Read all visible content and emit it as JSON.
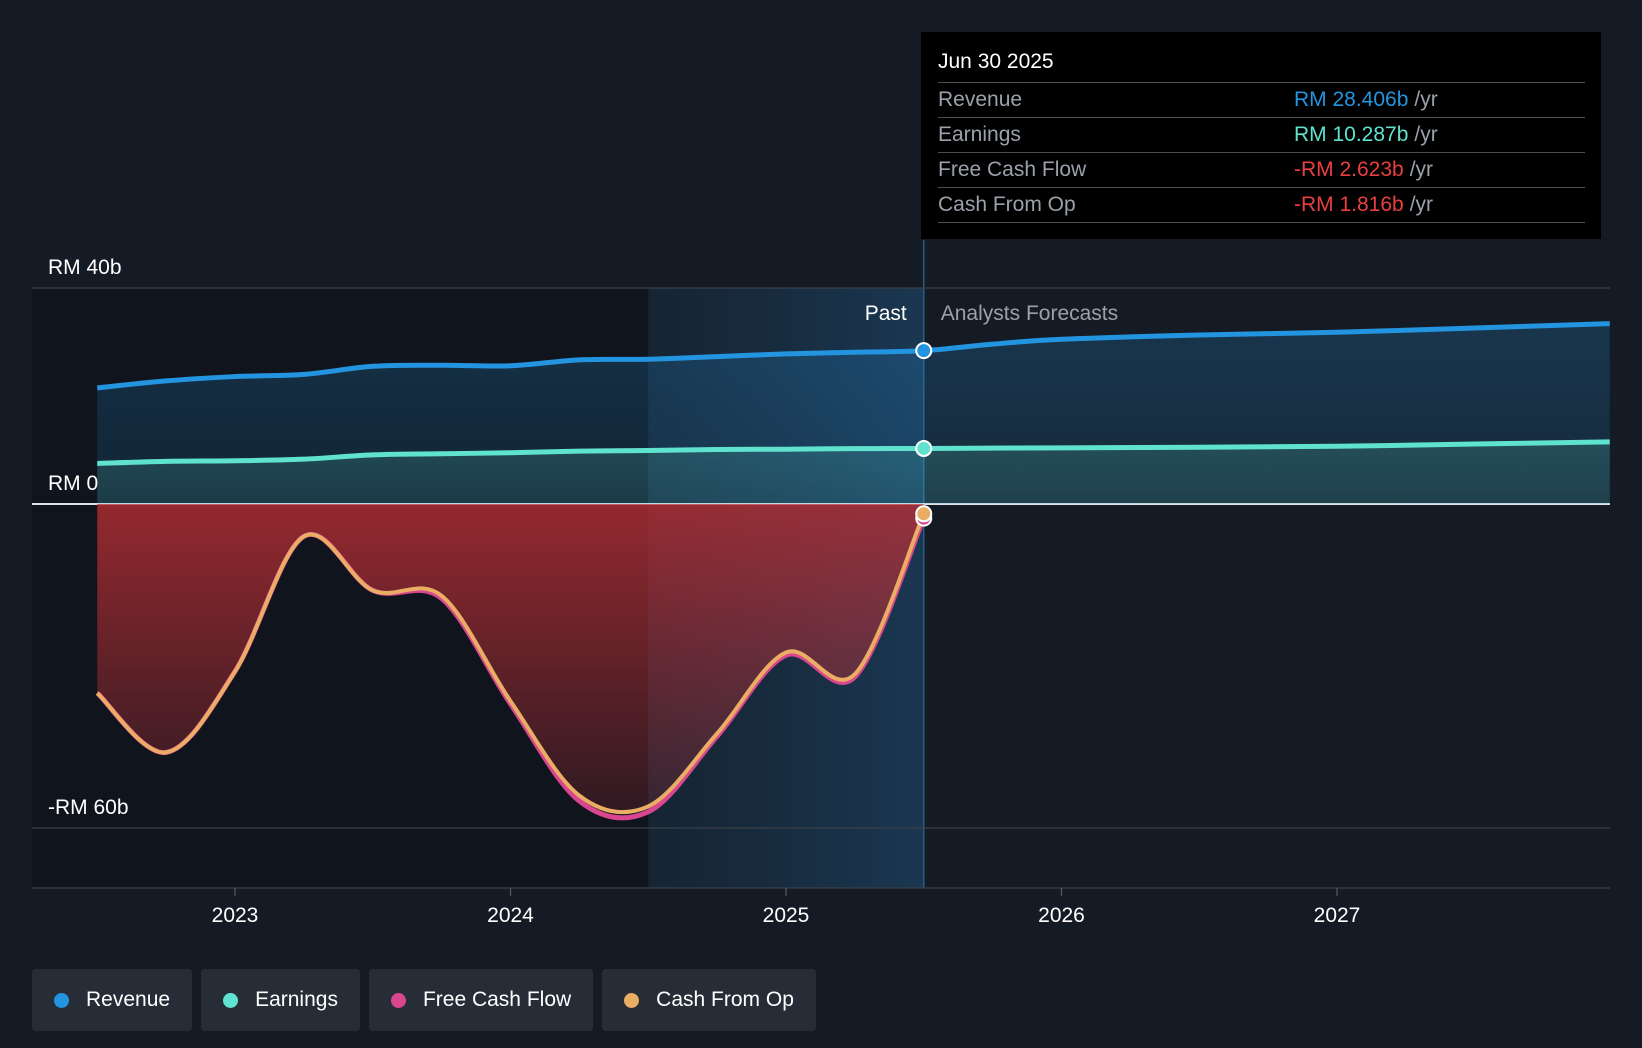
{
  "chart_data": {
    "type": "area",
    "ylim": [
      -60,
      40
    ],
    "y_tick_labels": [
      "RM 40b",
      "RM 0",
      "-RM 60b"
    ],
    "y_ticks": [
      40,
      0,
      -60
    ],
    "x_tick_labels": [
      "2023",
      "2024",
      "2025",
      "2026",
      "2027"
    ],
    "x_ticks": [
      2023,
      2024,
      2025,
      2026,
      2027
    ],
    "xlim": [
      2022.27,
      2027.99
    ],
    "past_label": "Past",
    "forecast_label": "Analysts Forecasts",
    "past_end_x": 2025.5,
    "highlight_start_x": 2024.5,
    "grid": true,
    "legend_position": "bottom-left",
    "series": [
      {
        "name": "Revenue",
        "color": "#2394df",
        "points": [
          [
            2022.5,
            21.5
          ],
          [
            2022.75,
            22.8
          ],
          [
            2023.0,
            23.6
          ],
          [
            2023.25,
            24.0
          ],
          [
            2023.5,
            25.5
          ],
          [
            2023.75,
            25.7
          ],
          [
            2024.0,
            25.6
          ],
          [
            2024.25,
            26.7
          ],
          [
            2024.5,
            26.8
          ],
          [
            2024.75,
            27.3
          ],
          [
            2025.0,
            27.8
          ],
          [
            2025.25,
            28.1
          ],
          [
            2025.5,
            28.406
          ],
          [
            2025.75,
            29.6
          ],
          [
            2026.0,
            30.5
          ],
          [
            2026.5,
            31.3
          ],
          [
            2027.0,
            31.8
          ],
          [
            2027.5,
            32.6
          ],
          [
            2027.99,
            33.4
          ]
        ]
      },
      {
        "name": "Earnings",
        "color": "#5fe3cf",
        "points": [
          [
            2022.5,
            7.5
          ],
          [
            2022.75,
            7.9
          ],
          [
            2023.0,
            8.0
          ],
          [
            2023.25,
            8.3
          ],
          [
            2023.5,
            9.1
          ],
          [
            2023.75,
            9.3
          ],
          [
            2024.0,
            9.5
          ],
          [
            2024.25,
            9.8
          ],
          [
            2024.5,
            9.9
          ],
          [
            2024.75,
            10.1
          ],
          [
            2025.0,
            10.15
          ],
          [
            2025.25,
            10.25
          ],
          [
            2025.5,
            10.287
          ],
          [
            2026.0,
            10.4
          ],
          [
            2026.5,
            10.5
          ],
          [
            2027.0,
            10.7
          ],
          [
            2027.5,
            11.1
          ],
          [
            2027.99,
            11.5
          ]
        ]
      },
      {
        "name": "Free Cash Flow",
        "color": "#d9468f",
        "points": [
          [
            2022.5,
            -35.0
          ],
          [
            2022.75,
            -46.0
          ],
          [
            2023.0,
            -31.0
          ],
          [
            2023.25,
            -6.0
          ],
          [
            2023.5,
            -16.0
          ],
          [
            2023.75,
            -17.5
          ],
          [
            2024.0,
            -37.0
          ],
          [
            2024.25,
            -55.0
          ],
          [
            2024.5,
            -57.0
          ],
          [
            2024.75,
            -43.0
          ],
          [
            2025.0,
            -28.0
          ],
          [
            2025.25,
            -32.0
          ],
          [
            2025.5,
            -2.623
          ]
        ]
      },
      {
        "name": "Cash From Op",
        "color": "#e9ad63",
        "points": [
          [
            2022.5,
            -35.0
          ],
          [
            2022.75,
            -46.0
          ],
          [
            2023.0,
            -31.0
          ],
          [
            2023.25,
            -6.0
          ],
          [
            2023.5,
            -16.0
          ],
          [
            2023.75,
            -17.0
          ],
          [
            2024.0,
            -36.5
          ],
          [
            2024.25,
            -54.0
          ],
          [
            2024.5,
            -56.0
          ],
          [
            2024.75,
            -42.5
          ],
          [
            2025.0,
            -27.5
          ],
          [
            2025.25,
            -31.5
          ],
          [
            2025.5,
            -1.816
          ]
        ]
      }
    ]
  },
  "tooltip": {
    "date": "Jun 30 2025",
    "unit": "/yr",
    "rows": [
      {
        "label": "Revenue",
        "value": "RM 28.406b",
        "color": "#2394df"
      },
      {
        "label": "Earnings",
        "value": "RM 10.287b",
        "color": "#5fe3cf"
      },
      {
        "label": "Free Cash Flow",
        "value": "-RM 2.623b",
        "color": "#e8403f"
      },
      {
        "label": "Cash From Op",
        "value": "-RM 1.816b",
        "color": "#e8403f"
      }
    ]
  },
  "legend": [
    {
      "label": "Revenue",
      "color": "#2394df"
    },
    {
      "label": "Earnings",
      "color": "#5fe3cf"
    },
    {
      "label": "Free Cash Flow",
      "color": "#d9468f"
    },
    {
      "label": "Cash From Op",
      "color": "#e9ad63"
    }
  ]
}
